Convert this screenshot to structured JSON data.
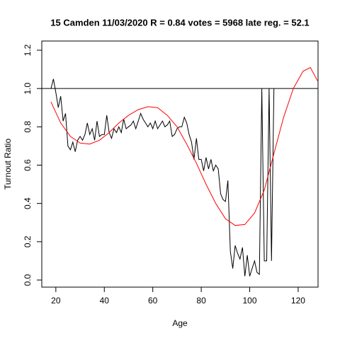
{
  "chart_data": {
    "type": "line",
    "title": "15 Camden 11/03/2020 R = 0.84 votes = 5968 late reg. = 52.1",
    "xlabel": "Age",
    "ylabel": "Turnout Ratio",
    "xlim": [
      14.2,
      128.2
    ],
    "ylim": [
      -0.037,
      1.248
    ],
    "xticks": [
      20,
      40,
      60,
      80,
      100,
      120
    ],
    "yticks": [
      {
        "value": 0,
        "label": "0.0"
      },
      {
        "value": 0.2,
        "label": "0.2"
      },
      {
        "value": 0.4,
        "label": "0.4"
      },
      {
        "value": 0.6,
        "label": "0.6"
      },
      {
        "value": 0.8,
        "label": "0.8"
      },
      {
        "value": 1,
        "label": "1.0"
      },
      {
        "value": 1.2,
        "label": "1.2"
      }
    ],
    "hline": 1,
    "hline_color": "#000000",
    "series": [
      {
        "color": "#000000",
        "x": [
          18,
          19,
          20,
          21,
          22,
          23,
          24,
          25,
          26,
          27,
          28,
          29,
          30,
          31,
          32,
          33,
          34,
          35,
          36,
          37,
          38,
          39,
          40,
          41,
          42,
          43,
          44,
          45,
          46,
          47,
          48,
          49,
          50,
          51,
          52,
          53,
          54,
          55,
          56,
          57,
          58,
          59,
          60,
          61,
          62,
          63,
          64,
          65,
          66,
          67,
          68,
          69,
          70,
          71,
          72,
          73,
          74,
          75,
          76,
          77,
          78,
          79,
          80,
          81,
          82,
          83,
          84,
          85,
          86,
          87,
          88,
          89,
          90,
          91,
          92,
          93,
          94,
          95,
          96,
          97,
          98,
          99,
          100,
          101,
          102,
          103,
          104,
          105,
          106,
          107,
          108,
          109,
          110
        ],
        "values": [
          1.0,
          1.05,
          0.98,
          0.9,
          0.96,
          0.83,
          0.87,
          0.7,
          0.68,
          0.72,
          0.67,
          0.73,
          0.75,
          0.73,
          0.76,
          0.82,
          0.76,
          0.79,
          0.73,
          0.83,
          0.75,
          0.76,
          0.76,
          0.86,
          0.77,
          0.74,
          0.79,
          0.77,
          0.8,
          0.77,
          0.84,
          0.79,
          0.8,
          0.81,
          0.83,
          0.79,
          0.83,
          0.87,
          0.84,
          0.82,
          0.8,
          0.82,
          0.79,
          0.83,
          0.79,
          0.81,
          0.83,
          0.8,
          0.81,
          0.83,
          0.75,
          0.76,
          0.79,
          0.8,
          0.8,
          0.85,
          0.82,
          0.76,
          0.72,
          0.63,
          0.74,
          0.63,
          0.63,
          0.57,
          0.64,
          0.58,
          0.63,
          0.57,
          0.6,
          0.58,
          0.45,
          0.42,
          0.41,
          0.52,
          0.15,
          0.06,
          0.18,
          0.14,
          0.11,
          0.17,
          0.02,
          0.13,
          0.02,
          0.06,
          0.1,
          0.04,
          0.03,
          1.0,
          0.1,
          0.1,
          1.0,
          0.1,
          1.0
        ]
      },
      {
        "color": "#ff0000",
        "x": [
          18,
          22,
          26,
          30,
          34,
          38,
          42,
          46,
          50,
          54,
          58,
          62,
          66,
          70,
          74,
          78,
          82,
          86,
          90,
          94,
          98,
          102,
          106,
          110,
          114,
          118,
          122,
          125,
          128
        ],
        "values": [
          0.93,
          0.82,
          0.75,
          0.715,
          0.71,
          0.73,
          0.77,
          0.82,
          0.86,
          0.89,
          0.905,
          0.9,
          0.86,
          0.8,
          0.71,
          0.61,
          0.5,
          0.4,
          0.32,
          0.285,
          0.29,
          0.35,
          0.47,
          0.66,
          0.85,
          1.0,
          1.09,
          1.11,
          1.04
        ]
      }
    ]
  }
}
